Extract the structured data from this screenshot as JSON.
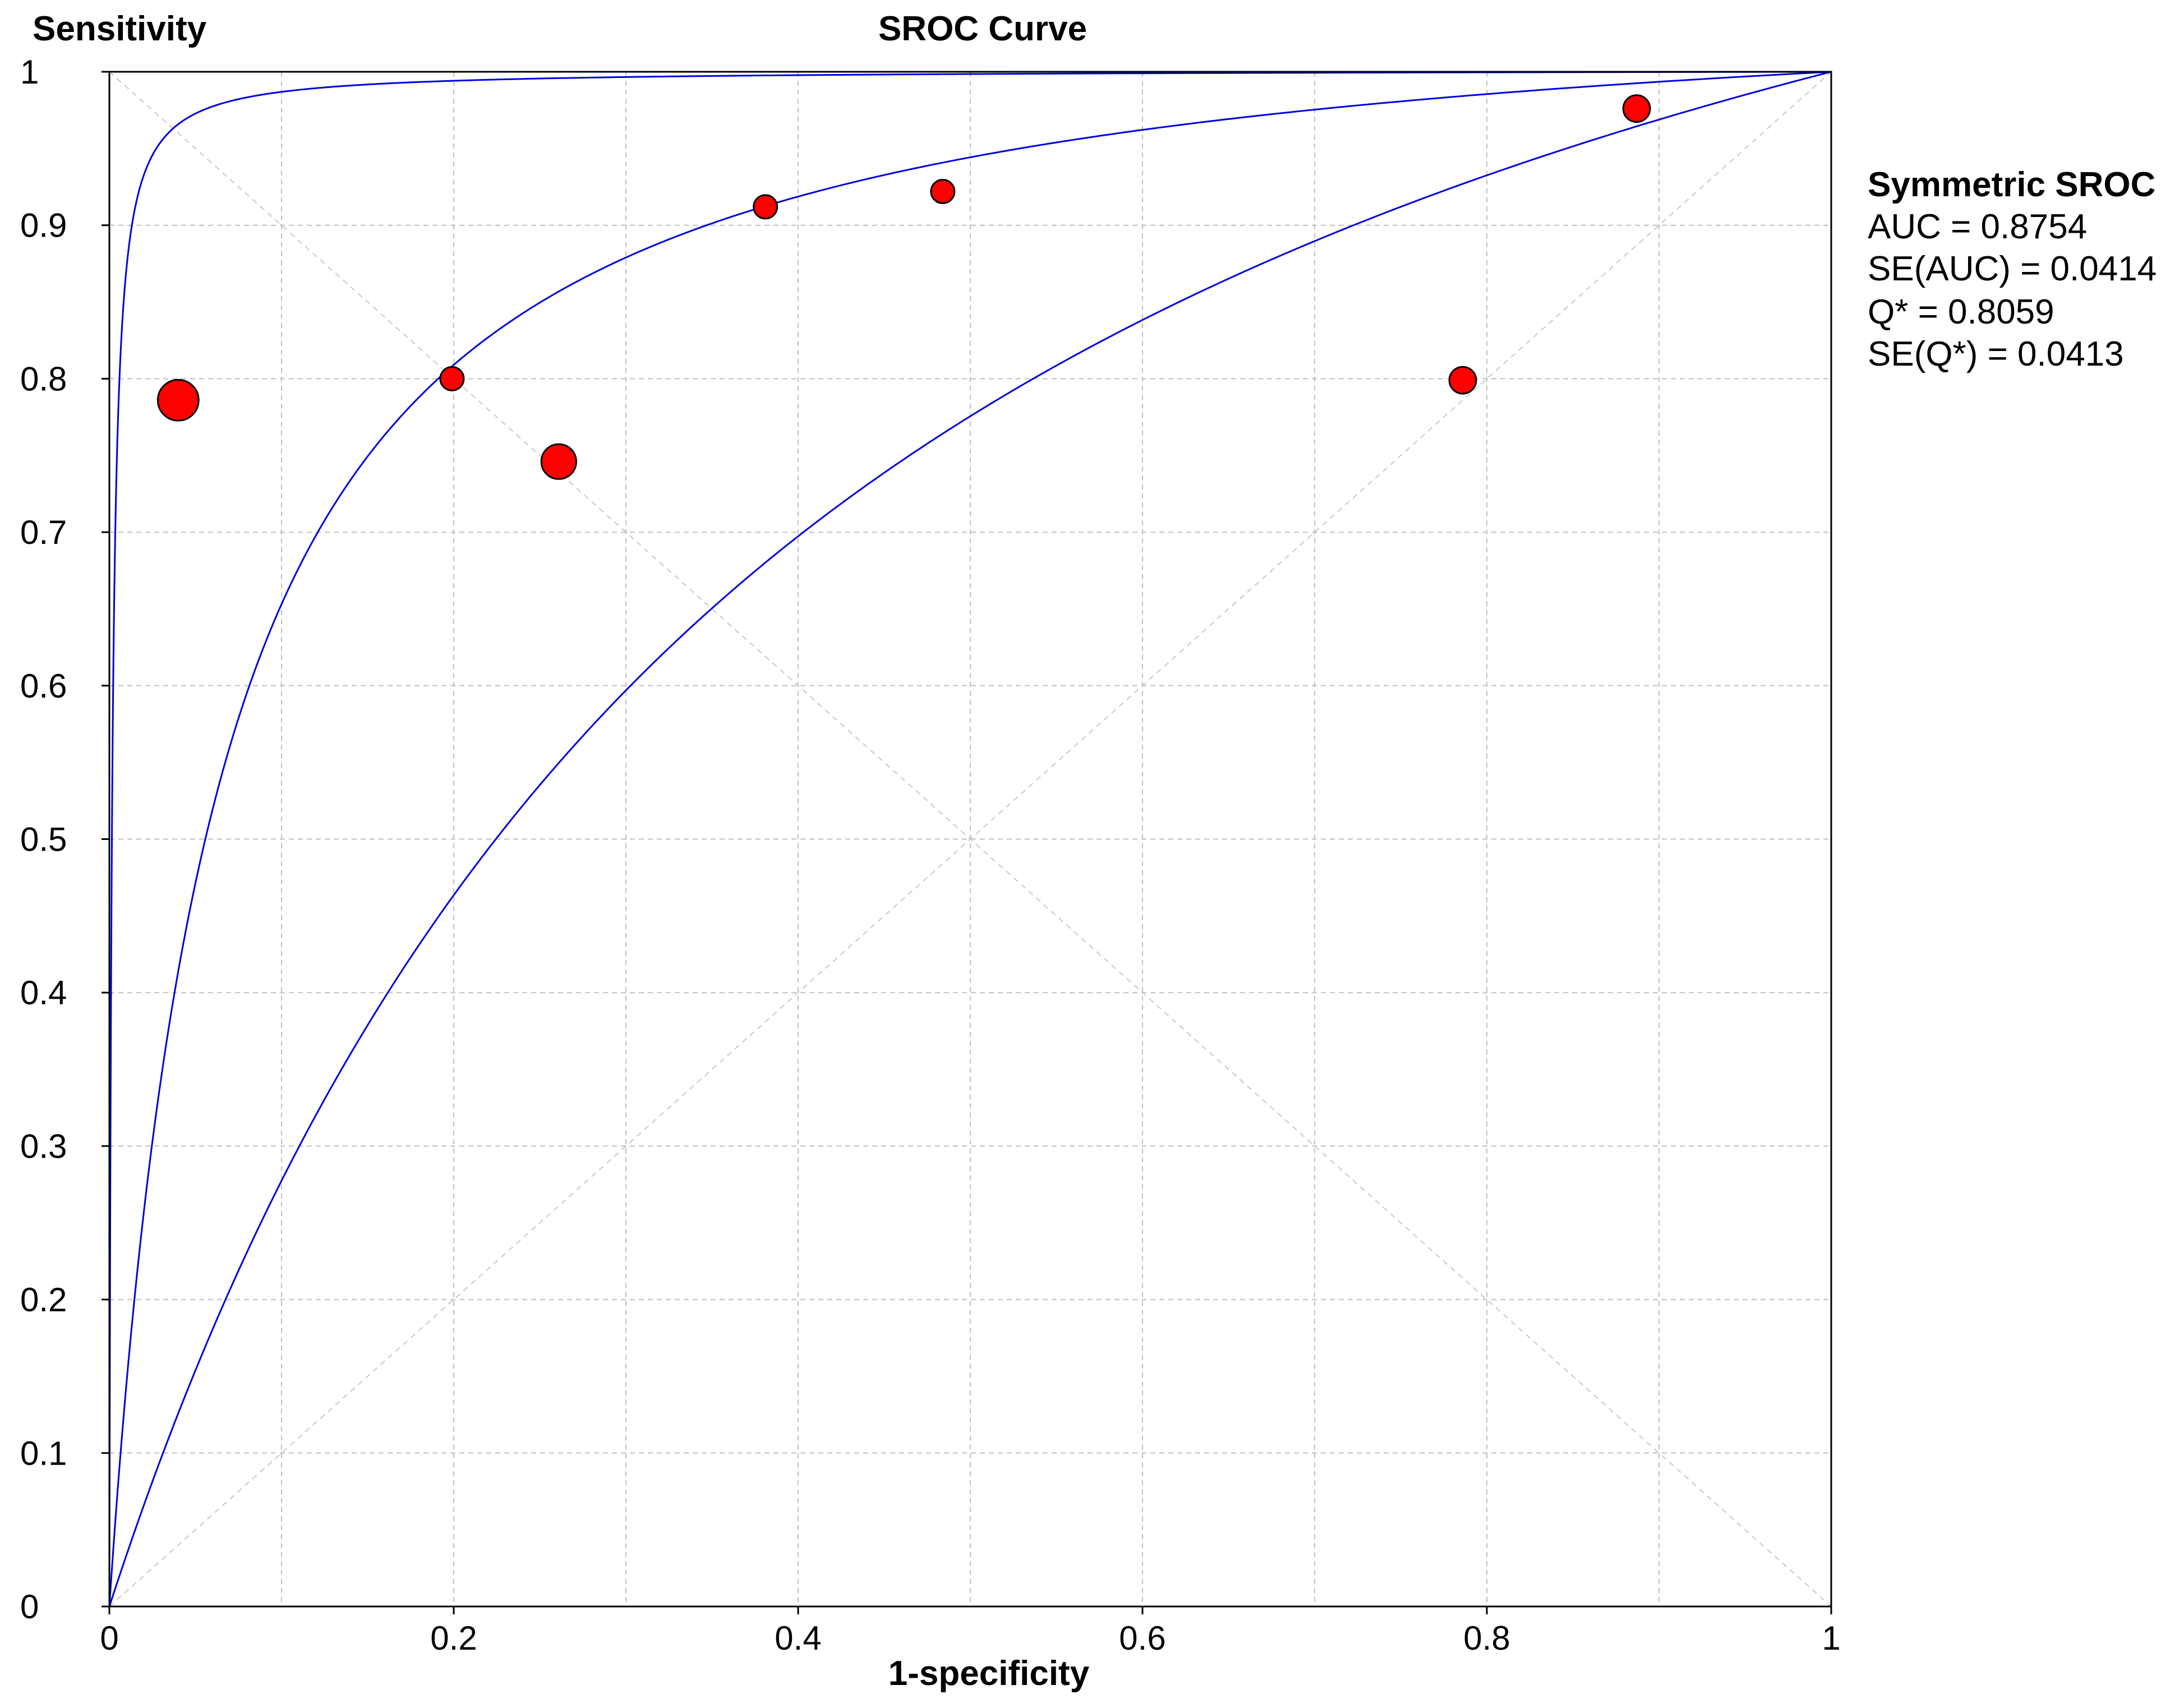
{
  "chart_data": {
    "type": "scatter",
    "title": "SROC Curve",
    "xlabel": "1-specificity",
    "ylabel": "Sensitivity",
    "xlim": [
      0,
      1
    ],
    "ylim": [
      0,
      1
    ],
    "x_ticks": [
      "0",
      "0.2",
      "0.4",
      "0.6",
      "0.8",
      "1"
    ],
    "x_tick_values": [
      0,
      0.2,
      0.4,
      0.6,
      0.8,
      1
    ],
    "y_ticks": [
      "0",
      "0.1",
      "0.2",
      "0.3",
      "0.4",
      "0.5",
      "0.6",
      "0.7",
      "0.8",
      "0.9",
      "1"
    ],
    "y_tick_values": [
      0,
      0.1,
      0.2,
      0.3,
      0.4,
      0.5,
      0.6,
      0.7,
      0.8,
      0.9,
      1
    ],
    "grid": true,
    "grid_style": "dashed",
    "legend_position": "right",
    "legend_title": "Symmetric SROC",
    "legend_lines": [
      "AUC = 0.8754",
      "SE(AUC) = 0.0414",
      "Q* = 0.8059",
      "SE(Q*) = 0.0413"
    ],
    "studies": [
      {
        "x": 0.04,
        "y": 0.786,
        "weight": 3.0
      },
      {
        "x": 0.199,
        "y": 0.8,
        "weight": 1.0
      },
      {
        "x": 0.261,
        "y": 0.746,
        "weight": 2.2
      },
      {
        "x": 0.381,
        "y": 0.912,
        "weight": 1.0
      },
      {
        "x": 0.484,
        "y": 0.922,
        "weight": 1.0
      },
      {
        "x": 0.786,
        "y": 0.799,
        "weight": 1.3
      },
      {
        "x": 0.887,
        "y": 0.976,
        "weight": 1.3
      }
    ],
    "curves": [
      {
        "name": "upper",
        "log_dor": 6.52
      },
      {
        "name": "sroc",
        "log_dor": 2.83
      },
      {
        "name": "lower",
        "log_dor": 1.24
      }
    ],
    "reference_lines": [
      "diagonal",
      "anti-diagonal"
    ],
    "colors": {
      "curve": "#0000e0",
      "marker_fill": "#ff0000",
      "marker_stroke": "#000000",
      "grid": "#c0c0c0",
      "reference": "#c8c8c8",
      "axes": "#000000"
    }
  }
}
